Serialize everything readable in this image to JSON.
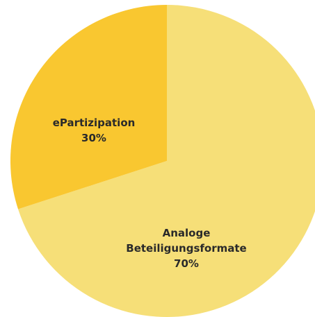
{
  "chart_data": {
    "type": "pie",
    "categories": [
      "Analoge Beteiligungsformate",
      "ePartizipation"
    ],
    "values": [
      70,
      30
    ],
    "value_labels": [
      "70%",
      "30%"
    ],
    "colors": [
      "#f6df78",
      "#f9c730"
    ]
  }
}
